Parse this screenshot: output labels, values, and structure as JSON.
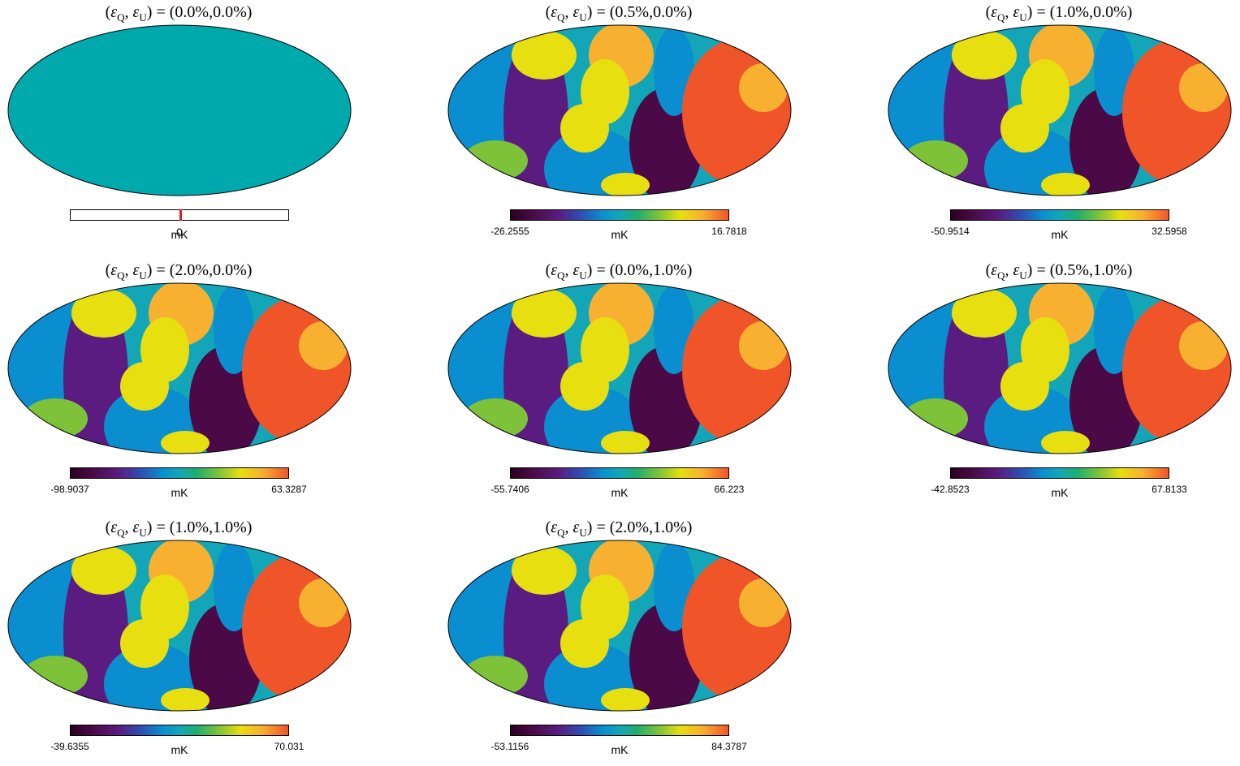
{
  "chart_data": [
    {
      "type": "heatmap",
      "projection": "mollweide",
      "eps_q": "0.0%",
      "eps_u": "0.0%",
      "min": "",
      "max": "",
      "center": "0",
      "unit": "mK",
      "uniform": true
    },
    {
      "type": "heatmap",
      "projection": "mollweide",
      "eps_q": "0.5%",
      "eps_u": "0.0%",
      "min": "-26.2555",
      "max": "16.7818",
      "unit": "mK"
    },
    {
      "type": "heatmap",
      "projection": "mollweide",
      "eps_q": "1.0%",
      "eps_u": "0.0%",
      "min": "-50.9514",
      "max": "32.5958",
      "unit": "mK"
    },
    {
      "type": "heatmap",
      "projection": "mollweide",
      "eps_q": "2.0%",
      "eps_u": "0.0%",
      "min": "-98.9037",
      "max": "63.3287",
      "unit": "mK"
    },
    {
      "type": "heatmap",
      "projection": "mollweide",
      "eps_q": "0.0%",
      "eps_u": "1.0%",
      "min": "-55.7406",
      "max": "66.223",
      "unit": "mK"
    },
    {
      "type": "heatmap",
      "projection": "mollweide",
      "eps_q": "0.5%",
      "eps_u": "1.0%",
      "min": "-42.8523",
      "max": "67.8133",
      "unit": "mK"
    },
    {
      "type": "heatmap",
      "projection": "mollweide",
      "eps_q": "1.0%",
      "eps_u": "1.0%",
      "min": "-39.6355",
      "max": "70.031",
      "unit": "mK"
    },
    {
      "type": "heatmap",
      "projection": "mollweide",
      "eps_q": "2.0%",
      "eps_u": "1.0%",
      "min": "-53.1156",
      "max": "84.3787",
      "unit": "mK"
    }
  ],
  "colors": {
    "uniform_fill": "#00aaac",
    "zero_marker": "#d92020",
    "colormap": [
      "#2a0020",
      "#4b0a47",
      "#5a1c80",
      "#2f4db0",
      "#0a8ed0",
      "#13a6b8",
      "#1fae6e",
      "#7ec23a",
      "#e7df10",
      "#f8b030",
      "#f0552a"
    ]
  }
}
